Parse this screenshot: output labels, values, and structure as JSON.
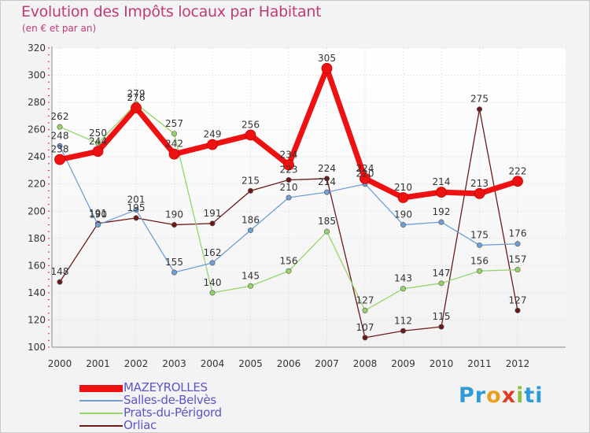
{
  "chart_data": {
    "type": "line",
    "title": "Evolution des Impôts locaux par Habitant",
    "subtitle": "(en € et par an)",
    "xlabel": "",
    "ylabel": "",
    "ylim": [
      100,
      320
    ],
    "yticks": [
      100,
      120,
      140,
      160,
      180,
      200,
      220,
      240,
      260,
      280,
      300,
      320
    ],
    "categories": [
      "2000",
      "2001",
      "2002",
      "2003",
      "2004",
      "2005",
      "2006",
      "2007",
      "2008",
      "2009",
      "2010",
      "2011",
      "2012"
    ],
    "series": [
      {
        "name": "Orliac",
        "color": "#6b1a1a",
        "values": [
          148,
          191,
          195,
          190,
          191,
          215,
          223,
          224,
          107,
          112,
          115,
          275,
          127
        ]
      },
      {
        "name": "Prats-du-Périgord",
        "color": "#96d46a",
        "values": [
          262,
          250,
          279,
          257,
          140,
          145,
          156,
          185,
          127,
          143,
          147,
          156,
          157
        ]
      },
      {
        "name": "Salles-de-Belvès",
        "color": "#6f9fd2",
        "values": [
          248,
          190,
          201,
          155,
          162,
          186,
          210,
          214,
          220,
          190,
          192,
          175,
          176
        ]
      },
      {
        "name": "MAZEYROLLES",
        "color": "#ee1111",
        "values": [
          238,
          244,
          276,
          242,
          249,
          256,
          234,
          305,
          224,
          210,
          214,
          213,
          222
        ]
      }
    ],
    "legend": [
      "MAZEYROLLES",
      "Salles-de-Belvès",
      "Prats-du-Périgord",
      "Orliac"
    ],
    "legend_position": "bottom-left",
    "grid": true
  },
  "branding": {
    "logo_text": "Proxiti",
    "logo_letters": [
      "P",
      "r",
      "o",
      "x",
      "i",
      "t",
      "i"
    ],
    "logo_colors": [
      "#2f9ad8",
      "#2f9ad8",
      "#e8a020",
      "#e03a2a",
      "#8ac040",
      "#2f9ad8",
      "#2f9ad8"
    ]
  }
}
